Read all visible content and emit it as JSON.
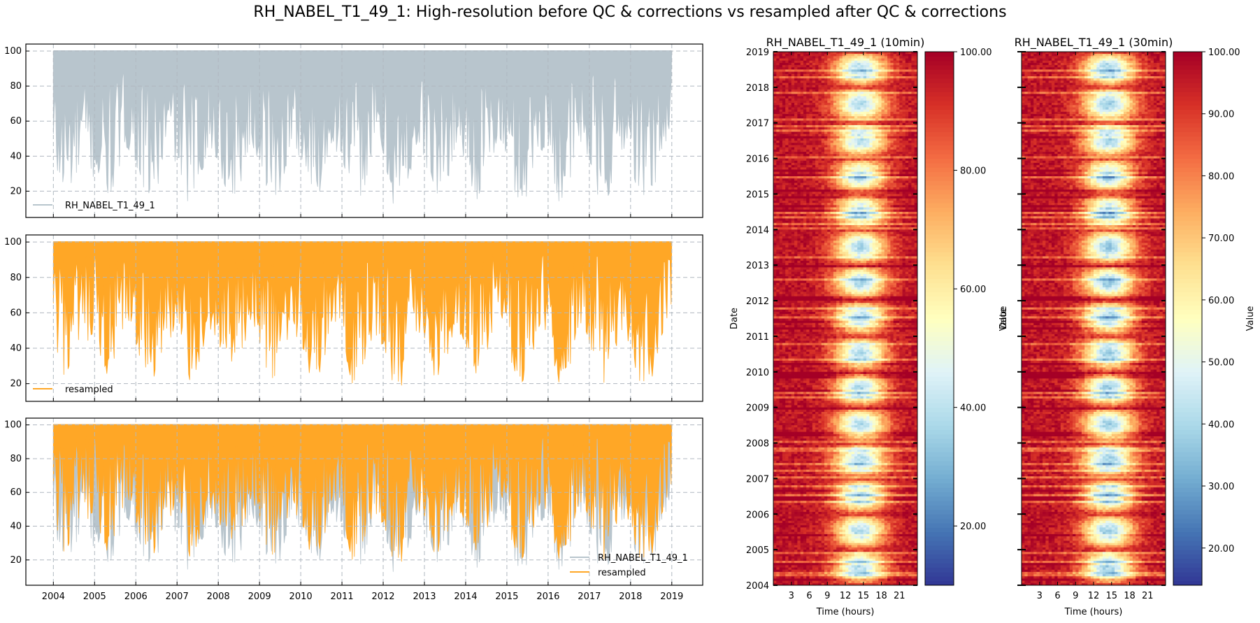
{
  "figure": {
    "title": "RH_NABEL_T1_49_1: High-resolution before QC & corrections vs resampled after QC & corrections"
  },
  "colors": {
    "raw": "#b8c5cd",
    "resampled": "#ffa726",
    "grid": "#b0b8c0"
  },
  "chart_data": [
    {
      "type": "area",
      "panel": "top",
      "xlim": [
        "2003-05",
        "2019-10"
      ],
      "ylim": [
        5,
        104
      ],
      "x_ticks": [
        "2004",
        "2005",
        "2006",
        "2007",
        "2008",
        "2009",
        "2010",
        "2011",
        "2012",
        "2013",
        "2014",
        "2015",
        "2016",
        "2017",
        "2018",
        "2019"
      ],
      "y_ticks": [
        20,
        40,
        60,
        80,
        100
      ],
      "grid": true,
      "legend": {
        "placement": "lower-left",
        "entries": [
          "RH_NABEL_T1_49_1"
        ]
      },
      "series": [
        {
          "name": "RH_NABEL_T1_49_1",
          "color": "#b8c5cd",
          "upper": 100,
          "lower_envelope": [
            [
              "2004-01",
              35
            ],
            [
              "2004-04",
              22
            ],
            [
              "2004-07",
              28
            ],
            [
              "2004-10",
              40
            ],
            [
              "2005-01",
              30
            ],
            [
              "2005-04",
              20
            ],
            [
              "2005-07",
              25
            ],
            [
              "2005-10",
              50
            ],
            [
              "2006-01",
              40
            ],
            [
              "2006-04",
              20
            ],
            [
              "2006-07",
              22
            ],
            [
              "2006-10",
              45
            ],
            [
              "2007-01",
              40
            ],
            [
              "2007-04",
              18
            ],
            [
              "2007-07",
              25
            ],
            [
              "2007-10",
              48
            ],
            [
              "2008-01",
              38
            ],
            [
              "2008-04",
              18
            ],
            [
              "2008-07",
              24
            ],
            [
              "2008-10",
              50
            ],
            [
              "2009-01",
              40
            ],
            [
              "2009-04",
              20
            ],
            [
              "2009-07",
              22
            ],
            [
              "2009-10",
              48
            ],
            [
              "2010-01",
              42
            ],
            [
              "2010-04",
              20
            ],
            [
              "2010-07",
              24
            ],
            [
              "2010-10",
              52
            ],
            [
              "2011-01",
              40
            ],
            [
              "2011-04",
              18
            ],
            [
              "2011-07",
              22
            ],
            [
              "2011-10",
              46
            ],
            [
              "2012-01",
              38
            ],
            [
              "2012-04",
              16
            ],
            [
              "2012-07",
              12
            ],
            [
              "2012-10",
              45
            ],
            [
              "2013-01",
              42
            ],
            [
              "2013-04",
              20
            ],
            [
              "2013-07",
              23
            ],
            [
              "2013-10",
              50
            ],
            [
              "2014-01",
              40
            ],
            [
              "2014-04",
              18
            ],
            [
              "2014-07",
              30
            ],
            [
              "2014-10",
              50
            ],
            [
              "2015-01",
              40
            ],
            [
              "2015-04",
              18
            ],
            [
              "2015-07",
              20
            ],
            [
              "2015-10",
              48
            ],
            [
              "2016-01",
              45
            ],
            [
              "2016-04",
              18
            ],
            [
              "2016-07",
              24
            ],
            [
              "2016-10",
              50
            ],
            [
              "2017-01",
              40
            ],
            [
              "2017-04",
              16
            ],
            [
              "2017-07",
              22
            ],
            [
              "2017-10",
              48
            ],
            [
              "2018-01",
              40
            ],
            [
              "2018-04",
              16
            ],
            [
              "2018-07",
              18
            ],
            [
              "2018-10",
              45
            ],
            [
              "2019-01",
              60
            ]
          ]
        }
      ]
    },
    {
      "type": "area",
      "panel": "middle",
      "xlim": [
        "2003-05",
        "2019-10"
      ],
      "ylim": [
        10,
        104
      ],
      "x_ticks": [
        "2004",
        "2005",
        "2006",
        "2007",
        "2008",
        "2009",
        "2010",
        "2011",
        "2012",
        "2013",
        "2014",
        "2015",
        "2016",
        "2017",
        "2018",
        "2019"
      ],
      "y_ticks": [
        20,
        40,
        60,
        80,
        100
      ],
      "grid": true,
      "legend": {
        "placement": "lower-left",
        "entries": [
          "resampled"
        ]
      },
      "series": [
        {
          "name": "resampled",
          "color": "#ffa726",
          "upper": 100,
          "lower_envelope": [
            [
              "2004-01",
              40
            ],
            [
              "2004-04",
              24
            ],
            [
              "2004-07",
              30
            ],
            [
              "2004-10",
              45
            ],
            [
              "2005-01",
              35
            ],
            [
              "2005-04",
              22
            ],
            [
              "2005-07",
              28
            ],
            [
              "2005-10",
              52
            ],
            [
              "2006-01",
              42
            ],
            [
              "2006-04",
              20
            ],
            [
              "2006-07",
              24
            ],
            [
              "2006-10",
              48
            ],
            [
              "2007-01",
              42
            ],
            [
              "2007-04",
              20
            ],
            [
              "2007-07",
              27
            ],
            [
              "2007-10",
              50
            ],
            [
              "2008-01",
              40
            ],
            [
              "2008-04",
              20
            ],
            [
              "2008-07",
              26
            ],
            [
              "2008-10",
              52
            ],
            [
              "2009-01",
              42
            ],
            [
              "2009-04",
              22
            ],
            [
              "2009-07",
              24
            ],
            [
              "2009-10",
              50
            ],
            [
              "2010-01",
              44
            ],
            [
              "2010-04",
              22
            ],
            [
              "2010-07",
              26
            ],
            [
              "2010-10",
              54
            ],
            [
              "2011-01",
              42
            ],
            [
              "2011-04",
              20
            ],
            [
              "2011-07",
              24
            ],
            [
              "2011-10",
              48
            ],
            [
              "2012-01",
              40
            ],
            [
              "2012-04",
              18
            ],
            [
              "2012-07",
              15
            ],
            [
              "2012-10",
              47
            ],
            [
              "2013-01",
              44
            ],
            [
              "2013-04",
              22
            ],
            [
              "2013-07",
              25
            ],
            [
              "2013-10",
              52
            ],
            [
              "2014-01",
              42
            ],
            [
              "2014-04",
              20
            ],
            [
              "2014-07",
              32
            ],
            [
              "2014-10",
              52
            ],
            [
              "2015-01",
              42
            ],
            [
              "2015-04",
              20
            ],
            [
              "2015-07",
              22
            ],
            [
              "2015-10",
              50
            ],
            [
              "2016-01",
              46
            ],
            [
              "2016-04",
              20
            ],
            [
              "2016-07",
              26
            ],
            [
              "2016-10",
              52
            ],
            [
              "2017-01",
              42
            ],
            [
              "2017-04",
              18
            ],
            [
              "2017-07",
              24
            ],
            [
              "2017-10",
              50
            ],
            [
              "2018-01",
              42
            ],
            [
              "2018-04",
              14
            ],
            [
              "2018-07",
              20
            ],
            [
              "2018-10",
              47
            ],
            [
              "2019-01",
              62
            ]
          ]
        }
      ]
    },
    {
      "type": "area",
      "panel": "bottom",
      "xlim": [
        "2003-05",
        "2019-10"
      ],
      "ylim": [
        5,
        104
      ],
      "x_ticks": [
        "2004",
        "2005",
        "2006",
        "2007",
        "2008",
        "2009",
        "2010",
        "2011",
        "2012",
        "2013",
        "2014",
        "2015",
        "2016",
        "2017",
        "2018",
        "2019"
      ],
      "y_ticks": [
        20,
        40,
        60,
        80,
        100
      ],
      "grid": true,
      "legend": {
        "placement": "lower-right",
        "entries": [
          "RH_NABEL_T1_49_1",
          "resampled"
        ]
      },
      "series": [
        {
          "name": "RH_NABEL_T1_49_1",
          "color": "#b8c5cd",
          "ref": "top"
        },
        {
          "name": "resampled",
          "color": "#ffa726",
          "ref": "middle"
        }
      ]
    },
    {
      "type": "heatmap",
      "title": "RH_NABEL_T1_49_1 (10min)",
      "xlabel": "Time (hours)",
      "ylabel": "Date",
      "x_ticks": [
        3,
        6,
        9,
        12,
        15,
        18,
        21
      ],
      "xlim": [
        0,
        24
      ],
      "y_ticks": [
        "2004",
        "2005",
        "2006",
        "2007",
        "2008",
        "2009",
        "2010",
        "2011",
        "2012",
        "2013",
        "2014",
        "2015",
        "2016",
        "2017",
        "2018",
        "2019"
      ],
      "colorbar": {
        "label": "Value",
        "range": [
          10,
          100
        ],
        "ticks": [
          "20.00",
          "40.00",
          "60.00",
          "80.00",
          "100.00"
        ],
        "colormap": "RdYlBu_r"
      }
    },
    {
      "type": "heatmap",
      "title": "RH_NABEL_T1_49_1 (30min)",
      "xlabel": "Time (hours)",
      "ylabel": "Date",
      "x_ticks": [
        3,
        6,
        9,
        12,
        15,
        18,
        21
      ],
      "xlim": [
        0,
        24
      ],
      "y_ticks": [
        "2004",
        "2005",
        "2006",
        "2007",
        "2008",
        "2009",
        "2010",
        "2011",
        "2012",
        "2013",
        "2014",
        "2015",
        "2016",
        "2017",
        "2018",
        "2019"
      ],
      "colorbar": {
        "label": "Value",
        "range": [
          14,
          100
        ],
        "ticks": [
          "20.00",
          "30.00",
          "40.00",
          "50.00",
          "60.00",
          "70.00",
          "80.00",
          "90.00",
          "100.00"
        ],
        "colormap": "RdYlBu_r"
      }
    }
  ]
}
